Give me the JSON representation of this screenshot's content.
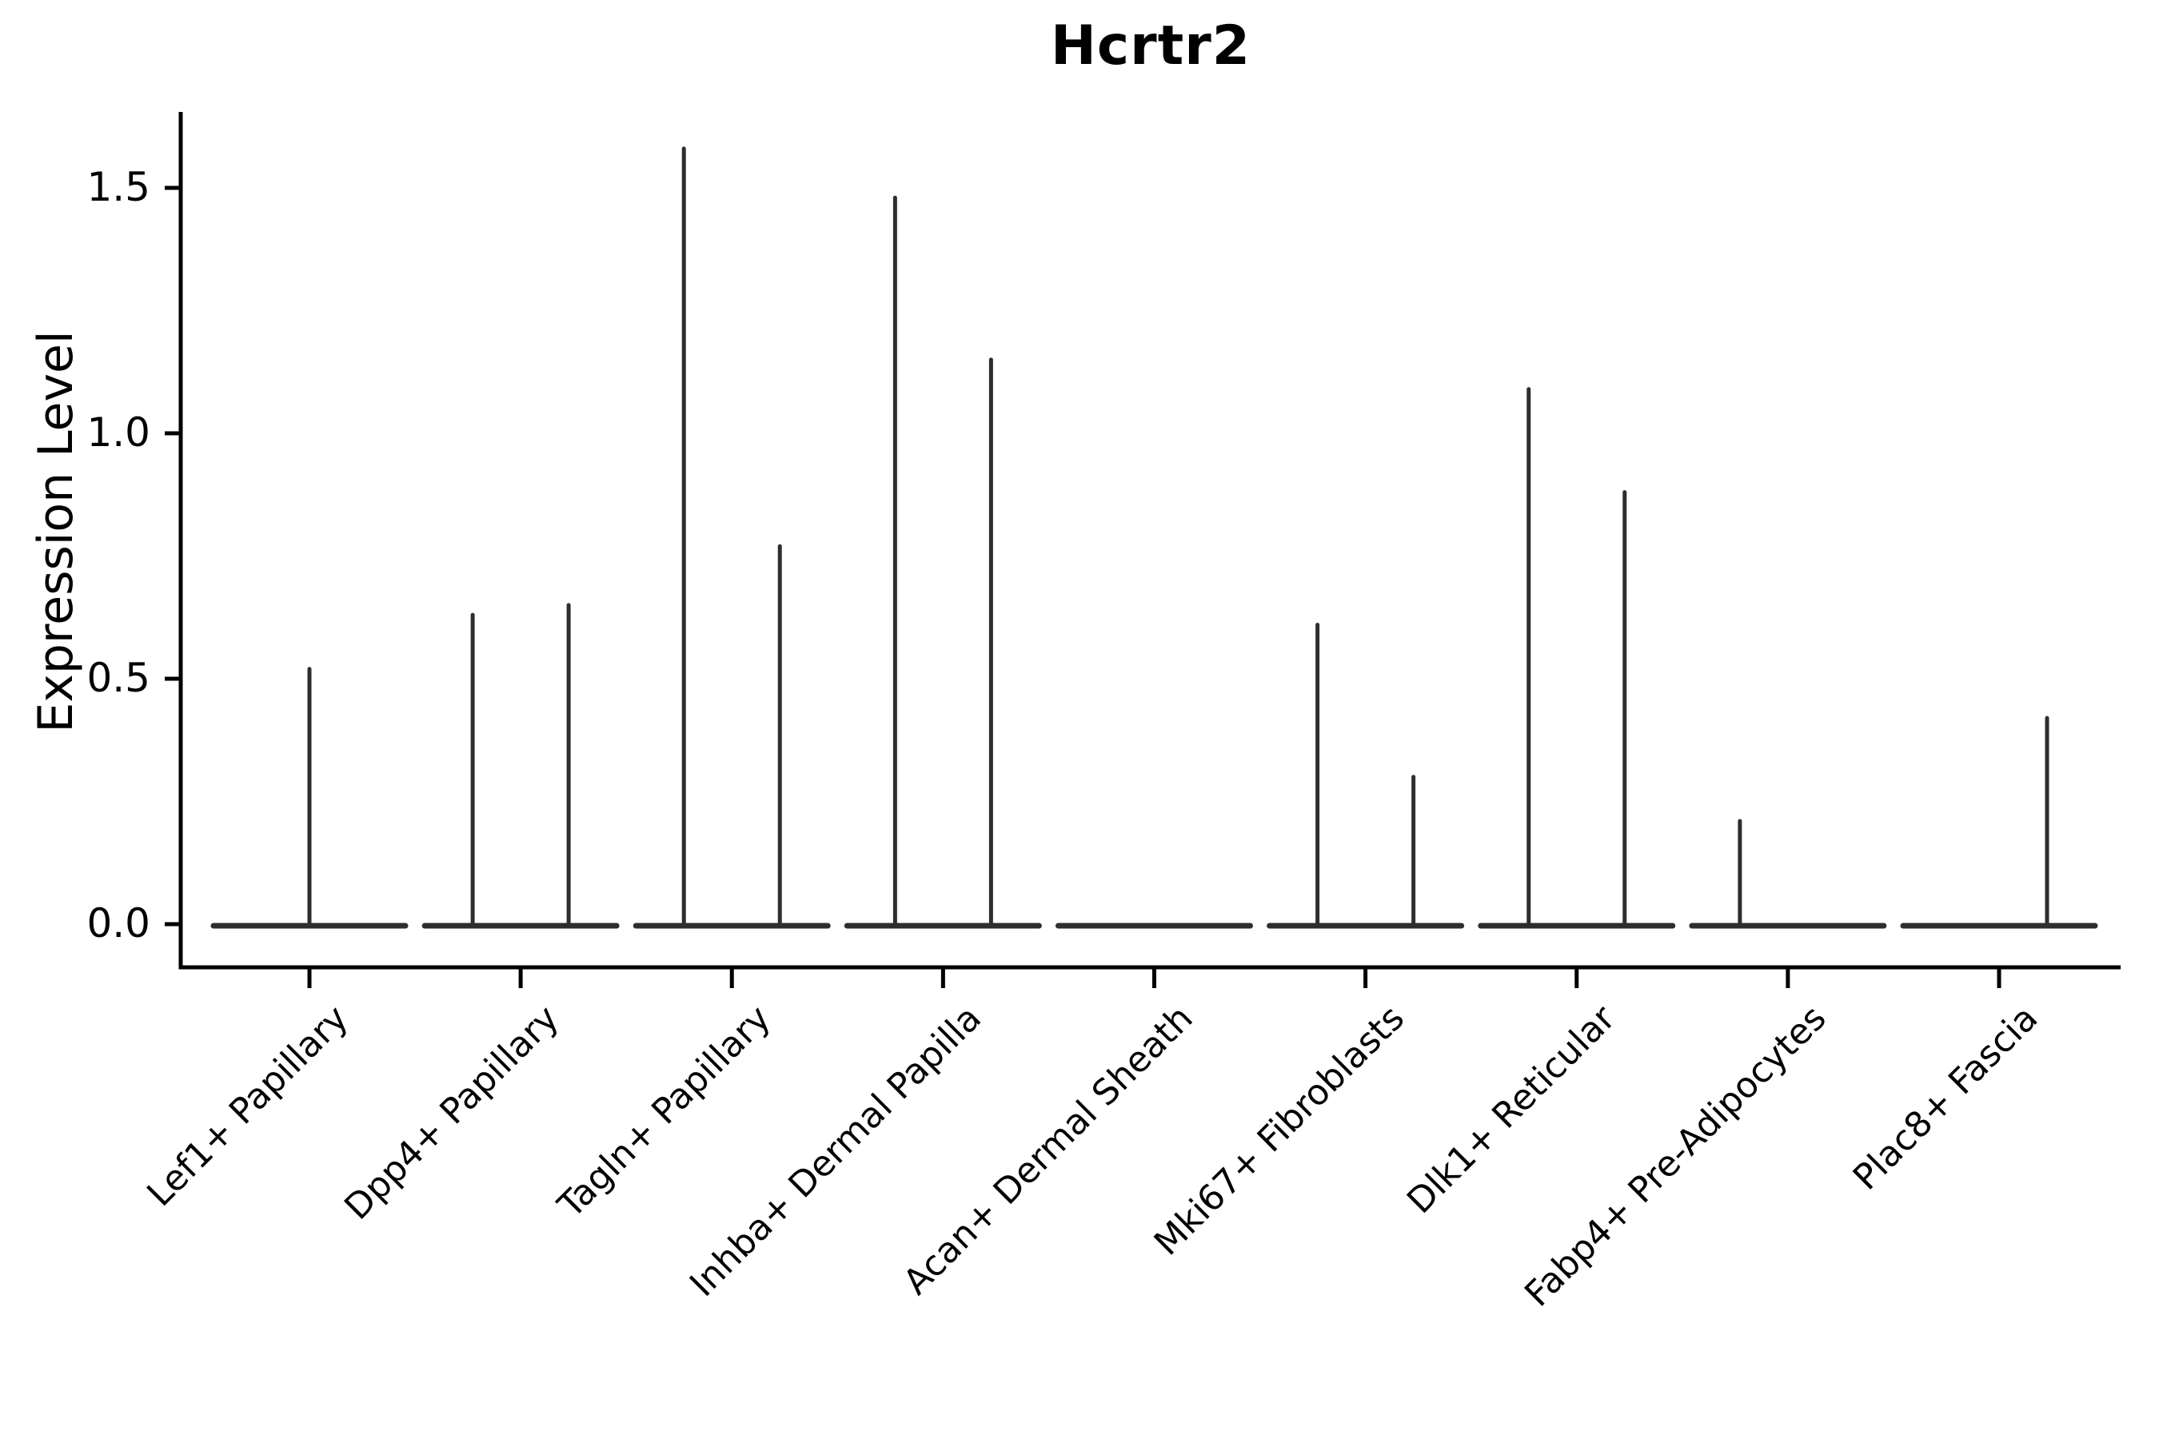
{
  "chart_data": {
    "type": "violin",
    "title": "Hcrtr2",
    "ylabel": "Expression Level",
    "xlabel": "",
    "ylim": [
      0,
      1.66
    ],
    "yticks": [
      {
        "value": 0.0,
        "label": "0.0"
      },
      {
        "value": 0.5,
        "label": "0.5"
      },
      {
        "value": 1.0,
        "label": "1.0"
      },
      {
        "value": 1.5,
        "label": "1.5"
      }
    ],
    "grid": false,
    "legend": "none",
    "description": "Needle-like violin plot; each cluster has a flat collapsed violin at expression 0 with thin spikes reaching the listed maximum expression values.",
    "baseline_value": 0.0,
    "groups": [
      {
        "label": "Lef1+ Papillary",
        "spikes": [
          {
            "position": "center",
            "value": 0.52
          }
        ]
      },
      {
        "label": "Dpp4+ Papillary",
        "spikes": [
          {
            "position": "left",
            "value": 0.63
          },
          {
            "position": "right",
            "value": 0.65
          }
        ]
      },
      {
        "label": "Tagln+ Papillary",
        "spikes": [
          {
            "position": "left",
            "value": 1.58
          },
          {
            "position": "right",
            "value": 0.77
          }
        ]
      },
      {
        "label": "Inhba+ Dermal Papilla",
        "spikes": [
          {
            "position": "left",
            "value": 1.48
          },
          {
            "position": "right",
            "value": 1.15
          }
        ]
      },
      {
        "label": "Acan+ Dermal Sheath",
        "spikes": []
      },
      {
        "label": "Mki67+ Fibroblasts",
        "spikes": [
          {
            "position": "left",
            "value": 0.61
          },
          {
            "position": "right",
            "value": 0.3
          }
        ]
      },
      {
        "label": "Dlk1+ Reticular",
        "spikes": [
          {
            "position": "left",
            "value": 1.09
          },
          {
            "position": "right",
            "value": 0.88
          }
        ]
      },
      {
        "label": "Fabp4+ Pre-Adipocytes",
        "spikes": [
          {
            "position": "left",
            "value": 0.21
          }
        ]
      },
      {
        "label": "Plac8+ Fascia",
        "spikes": [
          {
            "position": "right",
            "value": 0.42
          }
        ]
      }
    ]
  },
  "colors": {
    "background": "#ffffff",
    "axis": "#000000",
    "violin": "#2e2e2e",
    "text": "#000000"
  }
}
